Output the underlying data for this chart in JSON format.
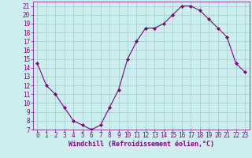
{
  "x": [
    0,
    1,
    2,
    3,
    4,
    5,
    6,
    7,
    8,
    9,
    10,
    11,
    12,
    13,
    14,
    15,
    16,
    17,
    18,
    19,
    20,
    21,
    22,
    23
  ],
  "y": [
    14.5,
    12.0,
    11.0,
    9.5,
    8.0,
    7.5,
    7.0,
    7.5,
    9.5,
    11.5,
    15.0,
    17.0,
    18.5,
    18.5,
    19.0,
    20.0,
    21.0,
    21.0,
    20.5,
    19.5,
    18.5,
    17.5,
    14.5,
    13.5
  ],
  "line_color": "#800080",
  "marker": "D",
  "marker_size": 2,
  "bg_color": "#cceeee",
  "grid_color": "#99cccc",
  "xlabel": "Windchill (Refroidissement éolien,°C)",
  "xlabel_color": "#800080",
  "tick_color": "#800080",
  "xlim": [
    -0.5,
    23.5
  ],
  "ylim": [
    7,
    21.5
  ],
  "yticks": [
    7,
    8,
    9,
    10,
    11,
    12,
    13,
    14,
    15,
    16,
    17,
    18,
    19,
    20,
    21
  ],
  "xticks": [
    0,
    1,
    2,
    3,
    4,
    5,
    6,
    7,
    8,
    9,
    10,
    11,
    12,
    13,
    14,
    15,
    16,
    17,
    18,
    19,
    20,
    21,
    22,
    23
  ],
  "tick_fontsize": 5.5,
  "xlabel_fontsize": 6.0
}
